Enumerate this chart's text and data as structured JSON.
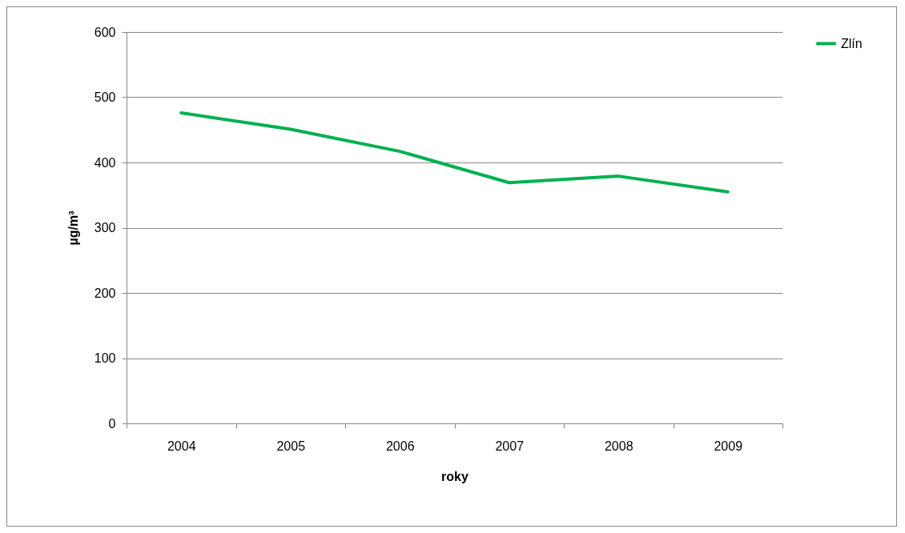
{
  "chart_data": {
    "type": "line",
    "xlabel": "roky",
    "ylabel": "µg/m³",
    "categories": [
      "2004",
      "2005",
      "2006",
      "2007",
      "2008",
      "2009"
    ],
    "series": [
      {
        "name": "Zlín",
        "color": "#00b050",
        "values": [
          476,
          451,
          417,
          369,
          379,
          355
        ]
      }
    ],
    "ylim": [
      0,
      600
    ],
    "yticks": [
      0,
      100,
      200,
      300,
      400,
      500,
      600
    ],
    "grid": "y",
    "legend": "right",
    "marker": "none",
    "line_style": "solid"
  }
}
